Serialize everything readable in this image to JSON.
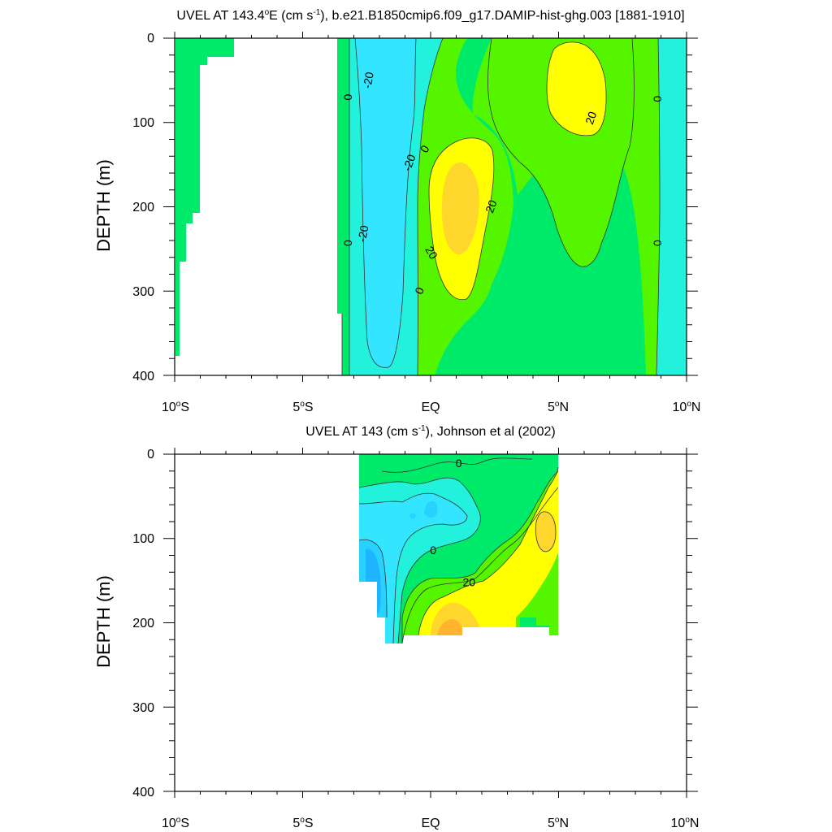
{
  "colors": {
    "c_neg40": "#1fb4ff",
    "c_neg30": "#28d2ff",
    "c_neg20": "#33e5ff",
    "c_neg10": "#22f2dc",
    "c_0": "#00ea6a",
    "c_10": "#55f500",
    "c_20": "#ffff00",
    "c_30": "#ffd72c",
    "c_40": "#ffb32f",
    "contour_line": "#333333"
  },
  "chart_data": [
    {
      "type": "heatmap",
      "title_main": "UVEL AT 143.4",
      "title_sup1": "o",
      "title_mid": "E (cm s",
      "title_sup2": "-1",
      "title_end": "), b.e21.B1850cmip6.f09_g17.DAMIP-hist-ghg.003 [1881-1910]",
      "ylabel": "DEPTH (m)",
      "x_unit": "latitude",
      "y_unit": "m",
      "xlim": [
        -10,
        10
      ],
      "ylim": [
        0,
        400
      ],
      "y_inverted": true,
      "yticks": [
        "0",
        "100",
        "200",
        "300",
        "400"
      ],
      "xticks": [
        {
          "base": "10",
          "deg": "o",
          "hem": "S"
        },
        {
          "base": "5",
          "deg": "o",
          "hem": "S"
        },
        {
          "base": "EQ",
          "deg": "",
          "hem": ""
        },
        {
          "base": "5",
          "deg": "o",
          "hem": "N"
        },
        {
          "base": "10",
          "deg": "o",
          "hem": "N"
        }
      ],
      "contour_labels": [
        {
          "text": "-20",
          "lat": -2.4,
          "depth": 50,
          "rot": -80
        },
        {
          "text": "0",
          "lat": -3.2,
          "depth": 70,
          "rot": -90
        },
        {
          "text": "-20",
          "lat": -0.8,
          "depth": 148,
          "rot": -70
        },
        {
          "text": "0",
          "lat": -0.2,
          "depth": 132,
          "rot": -60
        },
        {
          "text": "20",
          "lat": 2.4,
          "depth": 200,
          "rot": -70
        },
        {
          "text": "-20",
          "lat": -2.6,
          "depth": 232,
          "rot": -80
        },
        {
          "text": "0",
          "lat": -3.2,
          "depth": 243,
          "rot": -90
        },
        {
          "text": "20",
          "lat": 0.0,
          "depth": 255,
          "rot": 60
        },
        {
          "text": "0",
          "lat": -0.4,
          "depth": 300,
          "rot": -70
        },
        {
          "text": "20",
          "lat": 6.3,
          "depth": 95,
          "rot": -70
        },
        {
          "text": "0",
          "lat": 8.9,
          "depth": 72,
          "rot": -90
        },
        {
          "text": "0",
          "lat": 8.9,
          "depth": 243,
          "rot": -90
        }
      ]
    },
    {
      "type": "heatmap",
      "title_main": "UVEL AT 143 (cm s",
      "title_sup": "-1",
      "title_end": "), Johnson et al (2002)",
      "ylabel": "DEPTH (m)",
      "x_unit": "latitude",
      "y_unit": "m",
      "xlim": [
        -10,
        10
      ],
      "ylim": [
        0,
        400
      ],
      "y_inverted": true,
      "yticks": [
        "0",
        "100",
        "200",
        "300",
        "400"
      ],
      "xticks": [
        {
          "base": "10",
          "deg": "o",
          "hem": "S"
        },
        {
          "base": "5",
          "deg": "o",
          "hem": "S"
        },
        {
          "base": "EQ",
          "deg": "",
          "hem": ""
        },
        {
          "base": "5",
          "deg": "o",
          "hem": "N"
        },
        {
          "base": "10",
          "deg": "o",
          "hem": "N"
        }
      ],
      "data_extent": {
        "lat": [
          -2.8,
          5.0
        ],
        "depth": [
          0,
          225
        ]
      },
      "contour_labels": [
        {
          "text": "0",
          "lat": 1.1,
          "depth": 12,
          "rot": 0
        },
        {
          "text": "0",
          "lat": 0.1,
          "depth": 115,
          "rot": 0
        },
        {
          "text": "20",
          "lat": 1.5,
          "depth": 153,
          "rot": 0
        }
      ]
    }
  ]
}
